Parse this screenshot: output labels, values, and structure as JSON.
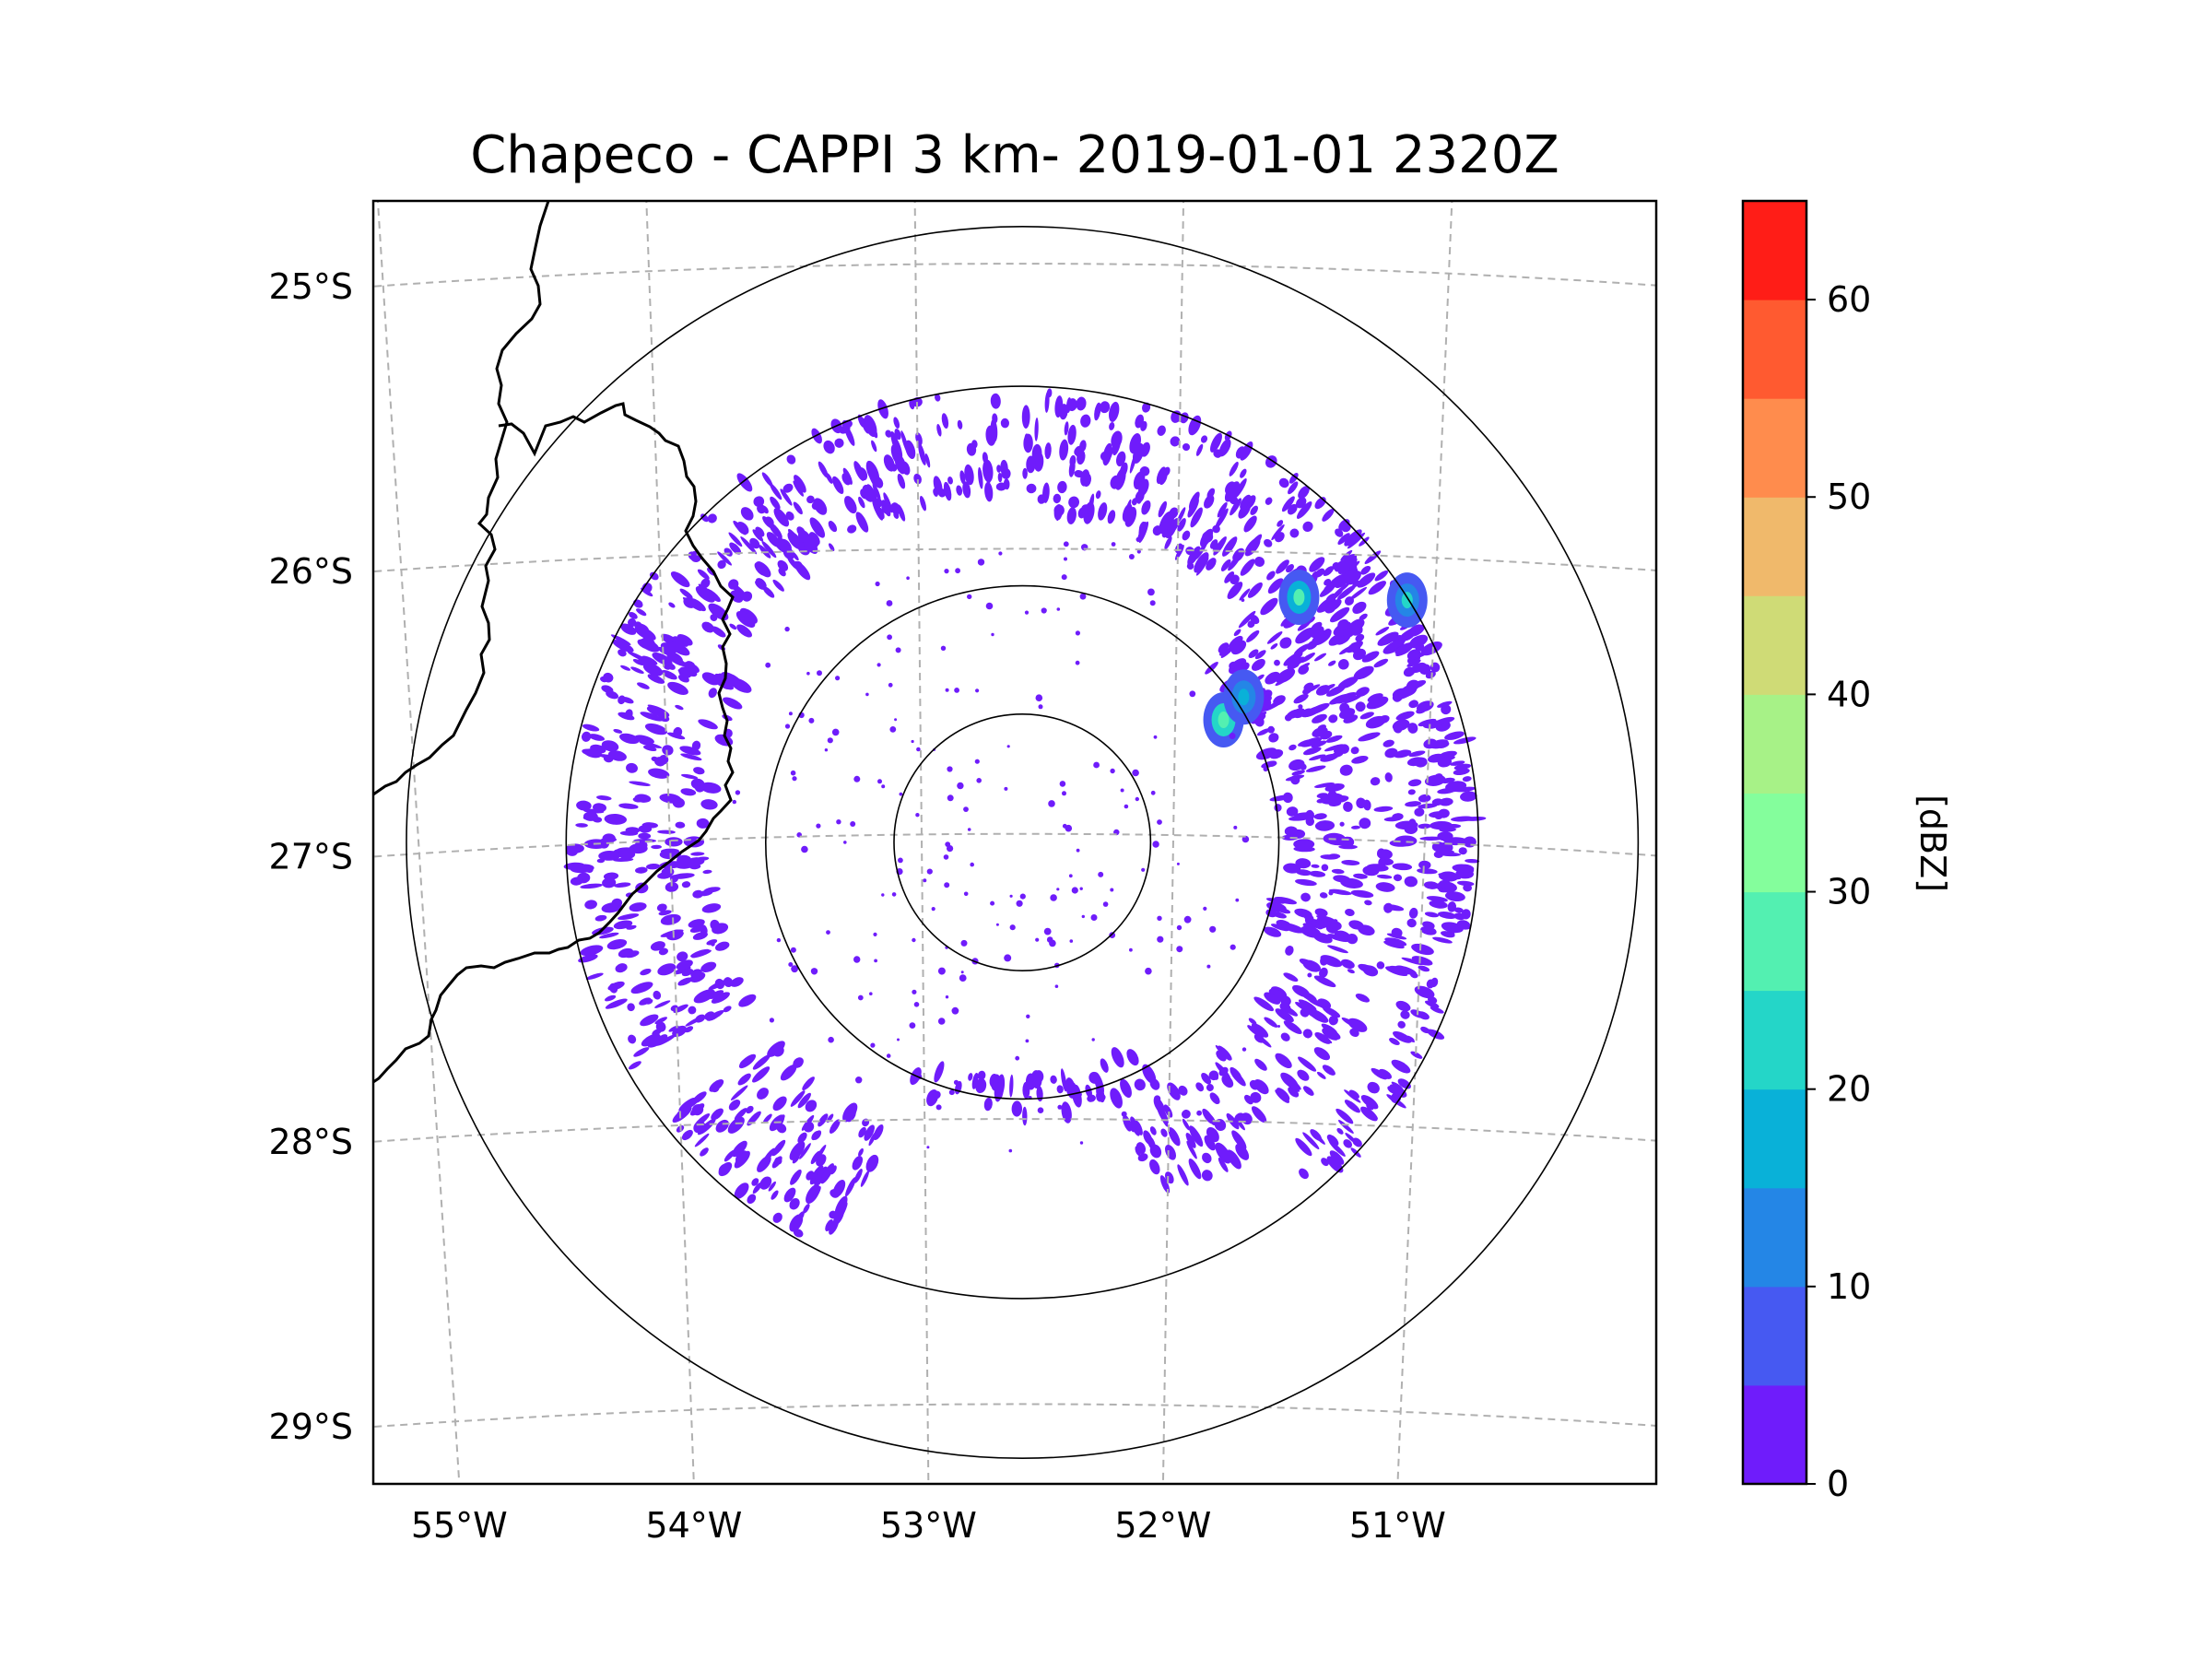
{
  "chart_data": {
    "type": "heatmap",
    "subtype": "radar-cappi-map",
    "title": "Chapeco - CAPPI 3 km- 2019-01-01 2320Z",
    "radar_name": "Chapeco",
    "product": "CAPPI 3 km",
    "datetime": "2019-01-01 2320Z",
    "map_extent": {
      "lon_min": -55.18,
      "lon_max": -50.08,
      "lat_min": -29.28,
      "lat_max": -24.78
    },
    "radar_site": {
      "lon": -52.6,
      "lat": -27.03
    },
    "range_ring_lat_radii_deg": [
      0.45,
      0.9,
      1.6,
      2.16
    ],
    "x_ticks": {
      "values": [
        -55,
        -54,
        -53,
        -52,
        -51
      ],
      "labels": [
        "55°W",
        "54°W",
        "53°W",
        "52°W",
        "51°W"
      ]
    },
    "y_ticks": {
      "values": [
        -25,
        -26,
        -27,
        -28,
        -29
      ],
      "labels": [
        "25°S",
        "26°S",
        "27°S",
        "28°S",
        "29°S"
      ]
    },
    "gridlines": true,
    "colorbar": {
      "label": "[dBZ]",
      "min": 0,
      "max": 65,
      "step": 5,
      "ticks": [
        0,
        10,
        20,
        30,
        40,
        50,
        60
      ],
      "tick_labels": [
        "0",
        "10",
        "20",
        "30",
        "40",
        "50",
        "60"
      ],
      "colors": [
        "#6f1cfb",
        "#4659f2",
        "#2486e6",
        "#09b1d8",
        "#24d6c8",
        "#53f0b1",
        "#84fe9c",
        "#a7f287",
        "#cfdb76",
        "#f0b96b",
        "#ff8c4d",
        "#ff5a30",
        "#ff1d17"
      ]
    },
    "reflectivity_regions": [
      {
        "name": "north arc",
        "dbz": 2,
        "r_min": 1.22,
        "r_max": 1.6,
        "az_from": 295,
        "az_to": 358
      },
      {
        "name": "north-east arc",
        "dbz": 2,
        "r_min": 1.15,
        "r_max": 1.6,
        "az_from": 0,
        "az_to": 60
      },
      {
        "name": "east band",
        "dbz": 2,
        "r_min": 0.9,
        "r_max": 1.58,
        "az_from": 45,
        "az_to": 110
      },
      {
        "name": "east outer edge",
        "dbz": 2,
        "r_min": 1.45,
        "r_max": 1.6,
        "az_from": 60,
        "az_to": 140
      },
      {
        "name": "south-east arc",
        "dbz": 2,
        "r_min": 1.0,
        "r_max": 1.35,
        "az_from": 110,
        "az_to": 160
      },
      {
        "name": "south-west sector",
        "dbz": 2,
        "r_min": 1.1,
        "r_max": 1.58,
        "az_from": 205,
        "az_to": 232
      },
      {
        "name": "south ring",
        "dbz": 2,
        "r_min": 0.82,
        "r_max": 0.97,
        "az_from": 150,
        "az_to": 205
      },
      {
        "name": "west scatter",
        "dbz": 2,
        "r_min": 1.1,
        "r_max": 1.58,
        "az_from": 240,
        "az_to": 300
      },
      {
        "name": "convective cell A",
        "dbz": 28,
        "lon": -51.8,
        "lat": -26.6
      },
      {
        "name": "convective cell B",
        "dbz": 25,
        "lon": -51.5,
        "lat": -26.17
      },
      {
        "name": "convective cell C",
        "dbz": 22,
        "lon": -51.07,
        "lat": -26.18
      },
      {
        "name": "convective cell D",
        "dbz": 18,
        "lon": -51.72,
        "lat": -26.52
      }
    ]
  }
}
